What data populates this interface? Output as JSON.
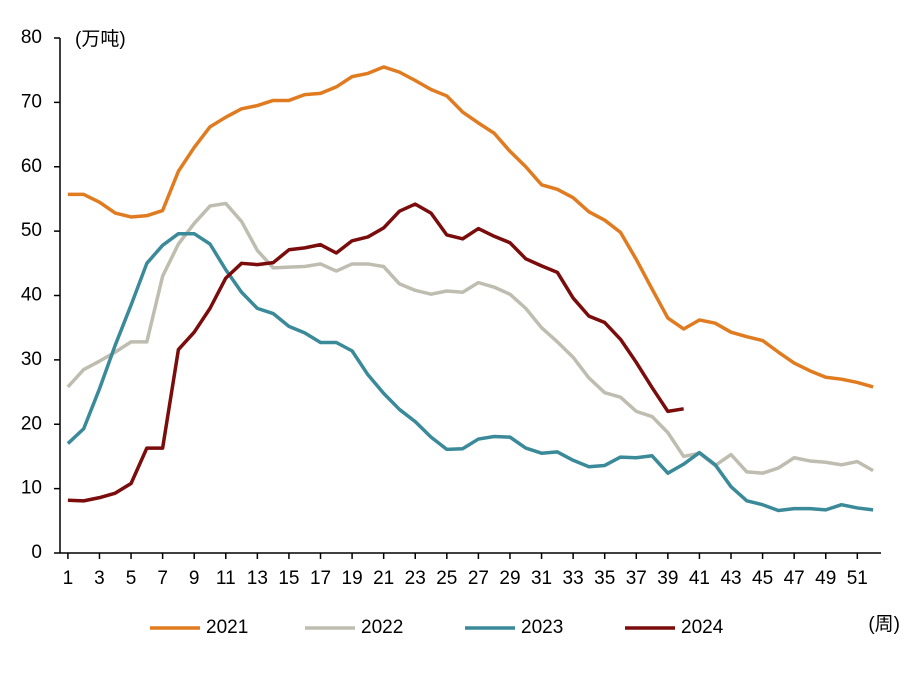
{
  "chart_data": {
    "type": "line",
    "y_label": "(万吨)",
    "x_label": "(周)",
    "x": [
      1,
      2,
      3,
      4,
      5,
      6,
      7,
      8,
      9,
      10,
      11,
      12,
      13,
      14,
      15,
      16,
      17,
      18,
      19,
      20,
      21,
      22,
      23,
      24,
      25,
      26,
      27,
      28,
      29,
      30,
      31,
      32,
      33,
      34,
      35,
      36,
      37,
      38,
      39,
      40,
      41,
      42,
      43,
      44,
      45,
      46,
      47,
      48,
      49,
      50,
      51,
      52
    ],
    "xlim": [
      0.5,
      52.5
    ],
    "xticks": [
      1,
      3,
      5,
      7,
      9,
      11,
      13,
      15,
      17,
      19,
      21,
      23,
      25,
      27,
      29,
      31,
      33,
      35,
      37,
      39,
      41,
      43,
      45,
      47,
      49,
      51
    ],
    "ylim": [
      0,
      80
    ],
    "yticks": [
      0,
      10,
      20,
      30,
      40,
      50,
      60,
      70,
      80
    ],
    "legend": "bottom",
    "series": [
      {
        "name": "2021",
        "color": "#e07b20",
        "values": [
          55.7,
          55.7,
          54.5,
          52.8,
          52.2,
          52.4,
          53.2,
          59.3,
          63,
          66.2,
          67.7,
          69,
          69.5,
          70.3,
          70.3,
          71.2,
          71.4,
          72.4,
          74,
          74.5,
          75.5,
          74.7,
          73.4,
          72,
          71,
          68.5,
          66.8,
          65.2,
          62.4,
          60,
          57.2,
          56.5,
          55.2,
          53,
          51.7,
          49.8,
          45.6,
          41,
          36.5,
          34.8,
          36.2,
          35.7,
          34.3,
          33.6,
          33,
          31.2,
          29.5,
          28.3,
          27.3,
          27,
          26.5,
          25.8
        ]
      },
      {
        "name": "2022",
        "color": "#bfbdb0",
        "values": [
          25.8,
          28.5,
          29.8,
          31.2,
          32.8,
          32.8,
          43,
          48,
          51.2,
          53.9,
          54.3,
          51.5,
          47,
          44.3,
          44.4,
          44.5,
          44.9,
          43.8,
          44.9,
          44.9,
          44.5,
          41.8,
          40.8,
          40.2,
          40.7,
          40.5,
          42,
          41.3,
          40.2,
          38,
          35,
          32.8,
          30.4,
          27.2,
          24.9,
          24.2,
          22,
          21.2,
          18.7,
          15,
          15.5,
          13.6,
          15.3,
          12.6,
          12.4,
          13.2,
          14.8,
          14.3,
          14.1,
          13.7,
          14.2,
          12.8
        ]
      },
      {
        "name": "2023",
        "color": "#3a8a9a",
        "values": [
          17,
          19.3,
          25.5,
          32.3,
          38.5,
          45,
          47.8,
          49.6,
          49.6,
          48,
          44,
          40.5,
          38,
          37.2,
          35.2,
          34.2,
          32.7,
          32.7,
          31.4,
          27.7,
          24.8,
          22.3,
          20.4,
          18,
          16.1,
          16.2,
          17.7,
          18.1,
          18,
          16.3,
          15.5,
          15.7,
          14.4,
          13.4,
          13.6,
          14.9,
          14.8,
          15.1,
          12.4,
          13.8,
          15.6,
          13.7,
          10.3,
          8.1,
          7.5,
          6.6,
          6.9,
          6.9,
          6.7,
          7.5,
          7,
          6.7
        ]
      },
      {
        "name": "2024",
        "color": "#7a0c0c",
        "values": [
          8.2,
          8.1,
          8.6,
          9.3,
          10.8,
          16.3,
          16.3,
          31.6,
          34.3,
          38,
          42.7,
          45,
          44.8,
          45.1,
          47.1,
          47.4,
          47.9,
          46.6,
          48.5,
          49.1,
          50.5,
          53.1,
          54.2,
          52.8,
          49.4,
          48.8,
          50.4,
          49.2,
          48.2,
          45.7,
          44.6,
          43.6,
          39.6,
          36.8,
          35.8,
          33.2,
          29.6,
          25.7,
          22,
          22.4,
          null,
          null,
          null,
          null,
          null,
          null,
          null,
          null,
          null,
          null,
          null,
          null
        ]
      }
    ]
  }
}
